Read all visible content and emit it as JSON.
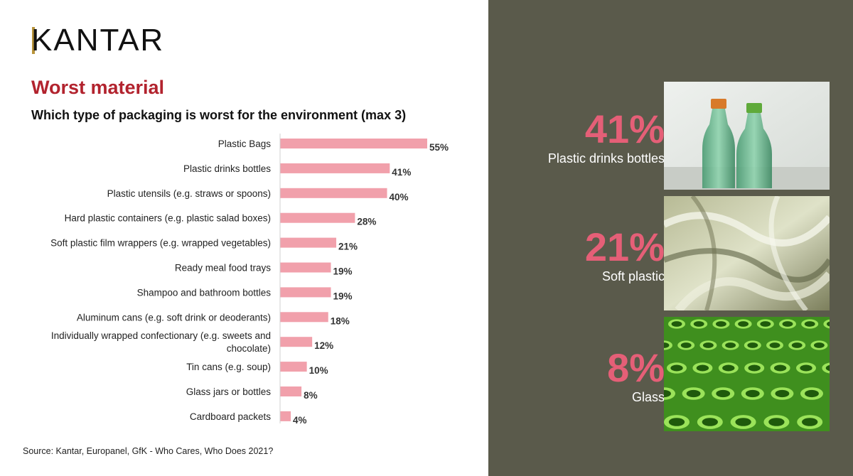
{
  "header": {
    "logo_text": "KANTAR",
    "title": "Worst material",
    "subtitle": "Which type of packaging is worst for the environment (max 3)"
  },
  "source": "Source: Kantar, Europanel, GfK - Who Cares, Who Does 2021?",
  "highlights": [
    {
      "percent": "41%",
      "label": "Plastic drinks bottles",
      "image": "green-plastic-bottles-photo"
    },
    {
      "percent": "21%",
      "label": "Soft plastic",
      "image": "plastic-film-photo"
    },
    {
      "percent": "8%",
      "label": "Glass",
      "image": "green-glass-bottles-photo"
    }
  ],
  "colors": {
    "bar": "#f1a0ab",
    "title": "#b2232e",
    "panel": "#5a5a4b",
    "highlight": "#e55f77"
  },
  "chart_data": {
    "type": "bar",
    "orientation": "horizontal",
    "title": "Which type of packaging is worst for the environment (max 3)",
    "categories": [
      [
        "Plastic Bags"
      ],
      [
        "Plastic drinks bottles"
      ],
      [
        "Plastic utensils (e.g. straws or spoons)"
      ],
      [
        "Hard plastic containers (e.g. plastic salad boxes)"
      ],
      [
        "Soft plastic film wrappers (e.g. wrapped vegetables)"
      ],
      [
        "Ready meal food trays"
      ],
      [
        "Shampoo and bathroom bottles"
      ],
      [
        "Aluminum cans (e.g. soft drink or deoderants)"
      ],
      [
        "Individually wrapped confectionary (e.g. sweets and",
        "chocolate)"
      ],
      [
        "Tin cans (e.g. soup)"
      ],
      [
        "Glass jars or bottles"
      ],
      [
        "Cardboard packets"
      ]
    ],
    "values": [
      55,
      41,
      40,
      28,
      21,
      19,
      19,
      18,
      12,
      10,
      8,
      4
    ],
    "value_labels": [
      "55%",
      "41%",
      "40%",
      "28%",
      "21%",
      "19%",
      "19%",
      "18%",
      "12%",
      "10%",
      "8%",
      "4%"
    ],
    "xlim": [
      0,
      60
    ],
    "grid": false,
    "legend": "none"
  }
}
